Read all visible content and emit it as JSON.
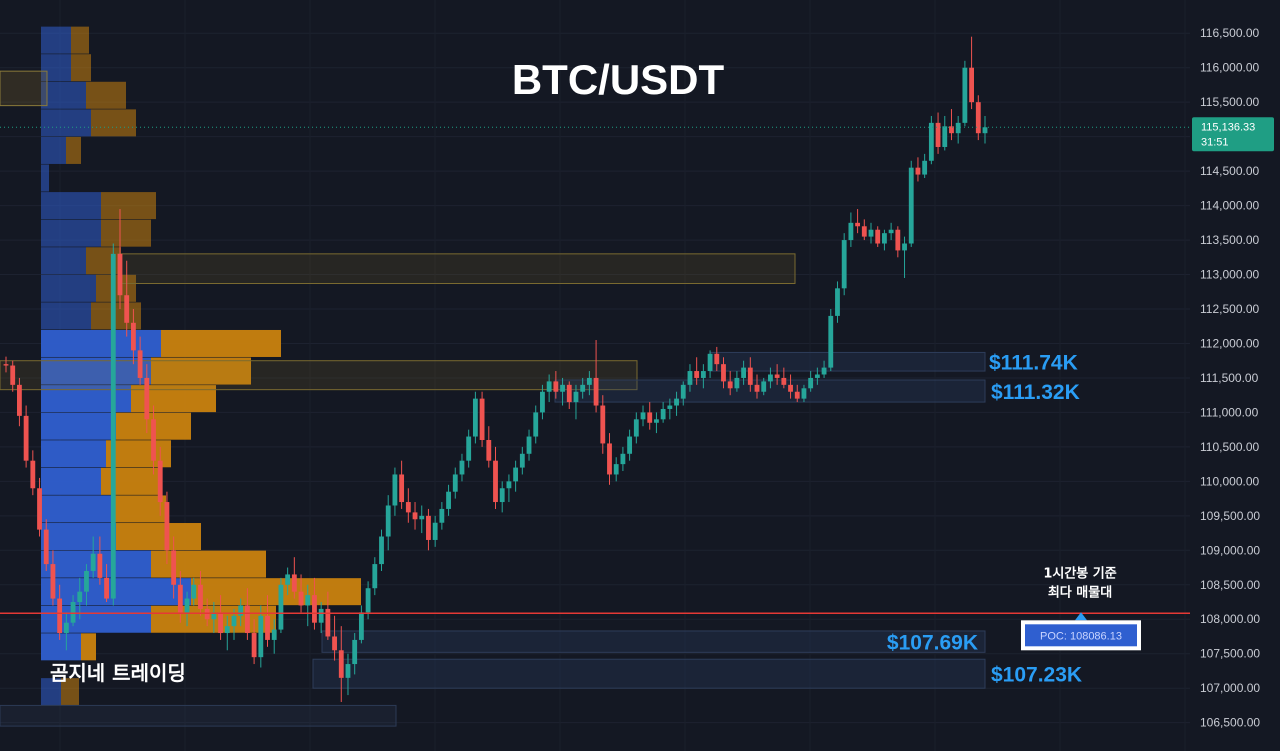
{
  "chart_data": {
    "type": "candlestick",
    "title": "BTC/USDT",
    "watermark": "곰지네 트레이딩",
    "colors": {
      "up": "#26a69a",
      "down": "#ef5350",
      "background": "#141823",
      "poc_line": "#e53935",
      "zone_label": "#2a9df4",
      "tag": "#1f9e84",
      "volume_buy": "#2f5fd0",
      "volume_sell": "#c9820f"
    },
    "y_axis": {
      "ylim": [
        106350,
        116750
      ],
      "ticks": [
        "116,500.00",
        "116,000.00",
        "115,500.00",
        "115,000.00",
        "114,500.00",
        "114,000.00",
        "113,500.00",
        "113,000.00",
        "112,500.00",
        "112,000.00",
        "111,500.00",
        "111,000.00",
        "110,500.00",
        "110,000.00",
        "109,500.00",
        "109,000.00",
        "108,500.00",
        "108,000.00",
        "107,500.00",
        "107,000.00",
        "106,500.00"
      ],
      "tick_values": [
        116500,
        116000,
        115500,
        115000,
        114500,
        114000,
        113500,
        113000,
        112500,
        112000,
        111500,
        111000,
        110500,
        110000,
        109500,
        109000,
        108500,
        108000,
        107500,
        107000,
        106500
      ]
    },
    "last_price": {
      "value": 115136.33,
      "label": "115,136.33",
      "countdown": "31:51"
    },
    "poc": {
      "value": 108086.13,
      "label": "POC: 108086.13",
      "annotation_line1": "1시간봉 기준",
      "annotation_line2": "최다 매물대"
    },
    "zones": [
      {
        "label": "$111.74K",
        "top": 111870,
        "bottom": 111600
      },
      {
        "label": "$111.32K",
        "top": 111470,
        "bottom": 111150
      },
      {
        "label": "$107.69K",
        "top": 107830,
        "bottom": 107520
      },
      {
        "label": "$107.23K",
        "top": 107420,
        "bottom": 107000
      }
    ],
    "candles": [
      [
        111700,
        111810,
        111580,
        111680
      ],
      [
        111680,
        111750,
        111300,
        111400
      ],
      [
        111400,
        111500,
        110800,
        110950
      ],
      [
        110950,
        111100,
        110200,
        110300
      ],
      [
        110300,
        110450,
        109800,
        109900
      ],
      [
        109900,
        110050,
        109200,
        109300
      ],
      [
        109300,
        109450,
        108700,
        108800
      ],
      [
        108800,
        109000,
        108200,
        108300
      ],
      [
        108300,
        108500,
        107700,
        107800
      ],
      [
        107800,
        108100,
        107550,
        107950
      ],
      [
        107950,
        108350,
        107900,
        108250
      ],
      [
        108250,
        108600,
        108000,
        108400
      ],
      [
        108400,
        108800,
        108200,
        108700
      ],
      [
        108700,
        109200,
        108600,
        108950
      ],
      [
        108950,
        109200,
        108500,
        108600
      ],
      [
        108600,
        108800,
        108250,
        108300
      ],
      [
        108300,
        113450,
        108200,
        113300
      ],
      [
        113300,
        113950,
        112500,
        112700
      ],
      [
        112700,
        113200,
        112100,
        112300
      ],
      [
        112300,
        112500,
        111700,
        111900
      ],
      [
        111900,
        112100,
        111400,
        111500
      ],
      [
        111500,
        111700,
        110700,
        110900
      ],
      [
        110900,
        111100,
        110100,
        110300
      ],
      [
        110300,
        110500,
        109500,
        109700
      ],
      [
        109700,
        109850,
        108800,
        109000
      ],
      [
        109000,
        109200,
        108300,
        108500
      ],
      [
        108500,
        108700,
        107950,
        108100
      ],
      [
        108100,
        108400,
        107900,
        108300
      ],
      [
        108300,
        108600,
        108200,
        108500
      ],
      [
        108500,
        108700,
        108050,
        108150
      ],
      [
        108150,
        108300,
        107900,
        108000
      ],
      [
        108000,
        108250,
        107800,
        108100
      ],
      [
        108100,
        108350,
        107700,
        107800
      ],
      [
        107800,
        108050,
        107550,
        107900
      ],
      [
        107900,
        108150,
        107700,
        108050
      ],
      [
        108050,
        108300,
        107900,
        108200
      ],
      [
        108200,
        108450,
        107700,
        107800
      ],
      [
        107800,
        108000,
        107350,
        107450
      ],
      [
        107450,
        108200,
        107300,
        108050
      ],
      [
        108050,
        108350,
        107600,
        107700
      ],
      [
        107700,
        108000,
        107500,
        107850
      ],
      [
        107850,
        108600,
        107800,
        108500
      ],
      [
        108500,
        108750,
        108350,
        108650
      ],
      [
        108650,
        108900,
        108300,
        108400
      ],
      [
        108400,
        108650,
        108100,
        108200
      ],
      [
        108200,
        108500,
        107900,
        108350
      ],
      [
        108350,
        108600,
        107850,
        107950
      ],
      [
        107950,
        108250,
        107800,
        108150
      ],
      [
        108150,
        108400,
        107700,
        107750
      ],
      [
        107750,
        108050,
        107400,
        107550
      ],
      [
        107550,
        107900,
        106800,
        107150
      ],
      [
        107150,
        107500,
        106900,
        107350
      ],
      [
        107350,
        107800,
        107200,
        107700
      ],
      [
        107700,
        108200,
        107650,
        108100
      ],
      [
        108100,
        108550,
        108000,
        108450
      ],
      [
        108450,
        108900,
        108350,
        108800
      ],
      [
        108800,
        109300,
        108700,
        109200
      ],
      [
        109200,
        109800,
        109000,
        109650
      ],
      [
        109650,
        110200,
        109500,
        110100
      ],
      [
        110100,
        110300,
        109600,
        109700
      ],
      [
        109700,
        109900,
        109400,
        109550
      ],
      [
        109550,
        109700,
        109300,
        109450
      ],
      [
        109450,
        109650,
        109250,
        109500
      ],
      [
        109500,
        109600,
        109000,
        109150
      ],
      [
        109150,
        109500,
        109050,
        109400
      ],
      [
        109400,
        109700,
        109300,
        109600
      ],
      [
        109600,
        109950,
        109500,
        109850
      ],
      [
        109850,
        110200,
        109750,
        110100
      ],
      [
        110100,
        110400,
        110000,
        110300
      ],
      [
        110300,
        110750,
        110200,
        110650
      ],
      [
        110650,
        111300,
        110550,
        111200
      ],
      [
        111200,
        111300,
        110500,
        110600
      ],
      [
        110600,
        110800,
        110200,
        110300
      ],
      [
        110300,
        110500,
        109600,
        109700
      ],
      [
        109700,
        110000,
        109550,
        109900
      ],
      [
        109900,
        110100,
        109700,
        110000
      ],
      [
        110000,
        110300,
        109850,
        110200
      ],
      [
        110200,
        110500,
        110100,
        110400
      ],
      [
        110400,
        110750,
        110300,
        110650
      ],
      [
        110650,
        111100,
        110550,
        111000
      ],
      [
        111000,
        111400,
        110900,
        111300
      ],
      [
        111300,
        111550,
        111150,
        111450
      ],
      [
        111450,
        111600,
        111200,
        111300
      ],
      [
        111300,
        111500,
        111100,
        111400
      ],
      [
        111400,
        111450,
        111050,
        111150
      ],
      [
        111150,
        111400,
        110900,
        111300
      ],
      [
        111300,
        111500,
        111200,
        111400
      ],
      [
        111400,
        111600,
        111250,
        111500
      ],
      [
        111500,
        112050,
        111000,
        111100
      ],
      [
        111100,
        111250,
        110400,
        110550
      ],
      [
        110550,
        110700,
        109950,
        110100
      ],
      [
        110100,
        110350,
        110000,
        110250
      ],
      [
        110250,
        110500,
        110150,
        110400
      ],
      [
        110400,
        110750,
        110300,
        110650
      ],
      [
        110650,
        111000,
        110550,
        110900
      ],
      [
        110900,
        111100,
        110800,
        111000
      ],
      [
        111000,
        111150,
        110750,
        110850
      ],
      [
        110850,
        111000,
        110700,
        110900
      ],
      [
        110900,
        111150,
        110850,
        111050
      ],
      [
        111050,
        111200,
        110900,
        111100
      ],
      [
        111100,
        111300,
        110950,
        111200
      ],
      [
        111200,
        111450,
        111100,
        111400
      ],
      [
        111400,
        111700,
        111300,
        111600
      ],
      [
        111600,
        111800,
        111400,
        111500
      ],
      [
        111500,
        111700,
        111350,
        111600
      ],
      [
        111600,
        111900,
        111500,
        111850
      ],
      [
        111850,
        111950,
        111600,
        111700
      ],
      [
        111700,
        111800,
        111350,
        111450
      ],
      [
        111450,
        111600,
        111250,
        111350
      ],
      [
        111350,
        111600,
        111300,
        111500
      ],
      [
        111500,
        111750,
        111400,
        111650
      ],
      [
        111650,
        111800,
        111300,
        111400
      ],
      [
        111400,
        111550,
        111200,
        111300
      ],
      [
        111300,
        111500,
        111250,
        111450
      ],
      [
        111450,
        111650,
        111350,
        111550
      ],
      [
        111550,
        111700,
        111400,
        111500
      ],
      [
        111500,
        111650,
        111350,
        111400
      ],
      [
        111400,
        111550,
        111200,
        111300
      ],
      [
        111300,
        111400,
        111150,
        111200
      ],
      [
        111200,
        111400,
        111150,
        111350
      ],
      [
        111350,
        111600,
        111300,
        111500
      ],
      [
        111500,
        111650,
        111400,
        111550
      ],
      [
        111550,
        111750,
        111500,
        111650
      ],
      [
        111650,
        112500,
        111600,
        112400
      ],
      [
        112400,
        112900,
        112300,
        112800
      ],
      [
        112800,
        113600,
        112700,
        113500
      ],
      [
        113500,
        113900,
        113400,
        113750
      ],
      [
        113750,
        113950,
        113600,
        113700
      ],
      [
        113700,
        113800,
        113500,
        113550
      ],
      [
        113550,
        113750,
        113450,
        113650
      ],
      [
        113650,
        113700,
        113400,
        113450
      ],
      [
        113450,
        113650,
        113350,
        113600
      ],
      [
        113600,
        113750,
        113500,
        113650
      ],
      [
        113650,
        113700,
        113250,
        113350
      ],
      [
        113350,
        113550,
        112950,
        113450
      ],
      [
        113450,
        114650,
        113400,
        114550
      ],
      [
        114550,
        114700,
        114350,
        114450
      ],
      [
        114450,
        114750,
        114400,
        114650
      ],
      [
        114650,
        115300,
        114600,
        115200
      ],
      [
        115200,
        115350,
        114750,
        114850
      ],
      [
        114850,
        115300,
        114800,
        115150
      ],
      [
        115150,
        115400,
        114950,
        115050
      ],
      [
        115050,
        115300,
        114900,
        115200
      ],
      [
        115200,
        116100,
        115150,
        116000
      ],
      [
        116000,
        116450,
        115400,
        115500
      ],
      [
        115500,
        115600,
        114950,
        115050
      ],
      [
        115050,
        115300,
        114900,
        115136
      ]
    ],
    "volume_profile": [
      [
        116400,
        30,
        18
      ],
      [
        116000,
        30,
        20
      ],
      [
        115600,
        45,
        40
      ],
      [
        115200,
        50,
        45
      ],
      [
        114800,
        25,
        15
      ],
      [
        114400,
        8,
        0
      ],
      [
        114000,
        60,
        55
      ],
      [
        113600,
        60,
        50
      ],
      [
        113200,
        45,
        35
      ],
      [
        112800,
        55,
        40
      ],
      [
        112400,
        50,
        50
      ],
      [
        112000,
        120,
        120
      ],
      [
        111600,
        110,
        100
      ],
      [
        111200,
        90,
        85
      ],
      [
        110800,
        75,
        75
      ],
      [
        110400,
        65,
        65
      ],
      [
        110000,
        60,
        60
      ],
      [
        109600,
        70,
        55
      ],
      [
        109200,
        75,
        85
      ],
      [
        108800,
        110,
        115
      ],
      [
        108400,
        150,
        170
      ],
      [
        108000,
        110,
        125
      ],
      [
        107600,
        40,
        15
      ],
      [
        106950,
        20,
        18
      ]
    ]
  }
}
